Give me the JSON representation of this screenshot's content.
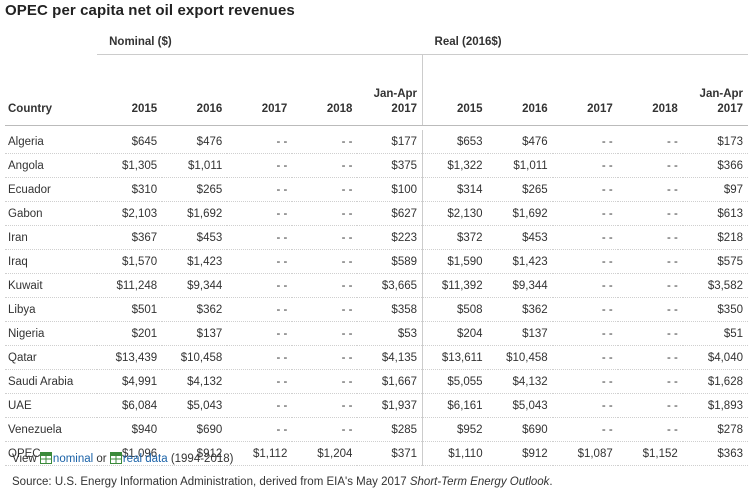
{
  "title": "OPEC per capita net oil export revenues",
  "headers": {
    "nominal_group": "Nominal ($)",
    "real_group": "Real (2016$)",
    "country": "Country",
    "nominal_cols": [
      {
        "line1": "",
        "line2": "2015"
      },
      {
        "line1": "",
        "line2": "2016"
      },
      {
        "line1": "",
        "line2": "2017"
      },
      {
        "line1": "",
        "line2": "2018"
      },
      {
        "line1": "Jan-Apr",
        "line2": "2017"
      }
    ],
    "real_cols": [
      {
        "line1": "",
        "line2": "2015"
      },
      {
        "line1": "",
        "line2": "2016"
      },
      {
        "line1": "",
        "line2": "2017"
      },
      {
        "line1": "",
        "line2": "2018"
      },
      {
        "line1": "Jan-Apr",
        "line2": "2017"
      }
    ]
  },
  "rows": [
    {
      "country": "Algeria",
      "nominal": [
        "$645",
        "$476",
        "- -",
        "- -",
        "$177"
      ],
      "real": [
        "$653",
        "$476",
        "- -",
        "- -",
        "$173"
      ]
    },
    {
      "country": "Angola",
      "nominal": [
        "$1,305",
        "$1,011",
        "- -",
        "- -",
        "$375"
      ],
      "real": [
        "$1,322",
        "$1,011",
        "- -",
        "- -",
        "$366"
      ]
    },
    {
      "country": "Ecuador",
      "nominal": [
        "$310",
        "$265",
        "- -",
        "- -",
        "$100"
      ],
      "real": [
        "$314",
        "$265",
        "- -",
        "- -",
        "$97"
      ]
    },
    {
      "country": "Gabon",
      "nominal": [
        "$2,103",
        "$1,692",
        "- -",
        "- -",
        "$627"
      ],
      "real": [
        "$2,130",
        "$1,692",
        "- -",
        "- -",
        "$613"
      ]
    },
    {
      "country": "Iran",
      "nominal": [
        "$367",
        "$453",
        "- -",
        "- -",
        "$223"
      ],
      "real": [
        "$372",
        "$453",
        "- -",
        "- -",
        "$218"
      ]
    },
    {
      "country": "Iraq",
      "nominal": [
        "$1,570",
        "$1,423",
        "- -",
        "- -",
        "$589"
      ],
      "real": [
        "$1,590",
        "$1,423",
        "- -",
        "- -",
        "$575"
      ]
    },
    {
      "country": "Kuwait",
      "nominal": [
        "$11,248",
        "$9,344",
        "- -",
        "- -",
        "$3,665"
      ],
      "real": [
        "$11,392",
        "$9,344",
        "- -",
        "- -",
        "$3,582"
      ]
    },
    {
      "country": "Libya",
      "nominal": [
        "$501",
        "$362",
        "- -",
        "- -",
        "$358"
      ],
      "real": [
        "$508",
        "$362",
        "- -",
        "- -",
        "$350"
      ]
    },
    {
      "country": "Nigeria",
      "nominal": [
        "$201",
        "$137",
        "- -",
        "- -",
        "$53"
      ],
      "real": [
        "$204",
        "$137",
        "- -",
        "- -",
        "$51"
      ]
    },
    {
      "country": "Qatar",
      "nominal": [
        "$13,439",
        "$10,458",
        "- -",
        "- -",
        "$4,135"
      ],
      "real": [
        "$13,611",
        "$10,458",
        "- -",
        "- -",
        "$4,040"
      ]
    },
    {
      "country": "Saudi Arabia",
      "nominal": [
        "$4,991",
        "$4,132",
        "- -",
        "- -",
        "$1,667"
      ],
      "real": [
        "$5,055",
        "$4,132",
        "- -",
        "- -",
        "$1,628"
      ]
    },
    {
      "country": "UAE",
      "nominal": [
        "$6,084",
        "$5,043",
        "- -",
        "- -",
        "$1,937"
      ],
      "real": [
        "$6,161",
        "$5,043",
        "- -",
        "- -",
        "$1,893"
      ]
    },
    {
      "country": "Venezuela",
      "nominal": [
        "$940",
        "$690",
        "- -",
        "- -",
        "$285"
      ],
      "real": [
        "$952",
        "$690",
        "- -",
        "- -",
        "$278"
      ]
    },
    {
      "country": "OPEC",
      "nominal": [
        "$1,096",
        "$912",
        "$1,112",
        "$1,204",
        "$371"
      ],
      "real": [
        "$1,110",
        "$912",
        "$1,087",
        "$1,152",
        "$363"
      ]
    }
  ],
  "footer": {
    "view_prefix": "View",
    "nominal_link": "nominal",
    "or_text": "or",
    "real_link": "real data",
    "range_text": "(1994-2018)",
    "source_prefix": "Source: U.S. Energy Information Administration, derived from EIA's May 2017",
    "source_title": "Short-Term Energy Outlook",
    "source_suffix": "."
  },
  "icons": {
    "spreadsheet": "spreadsheet-icon"
  },
  "colors": {
    "link": "#1a62a8",
    "icon_green": "#3a8a3a"
  }
}
